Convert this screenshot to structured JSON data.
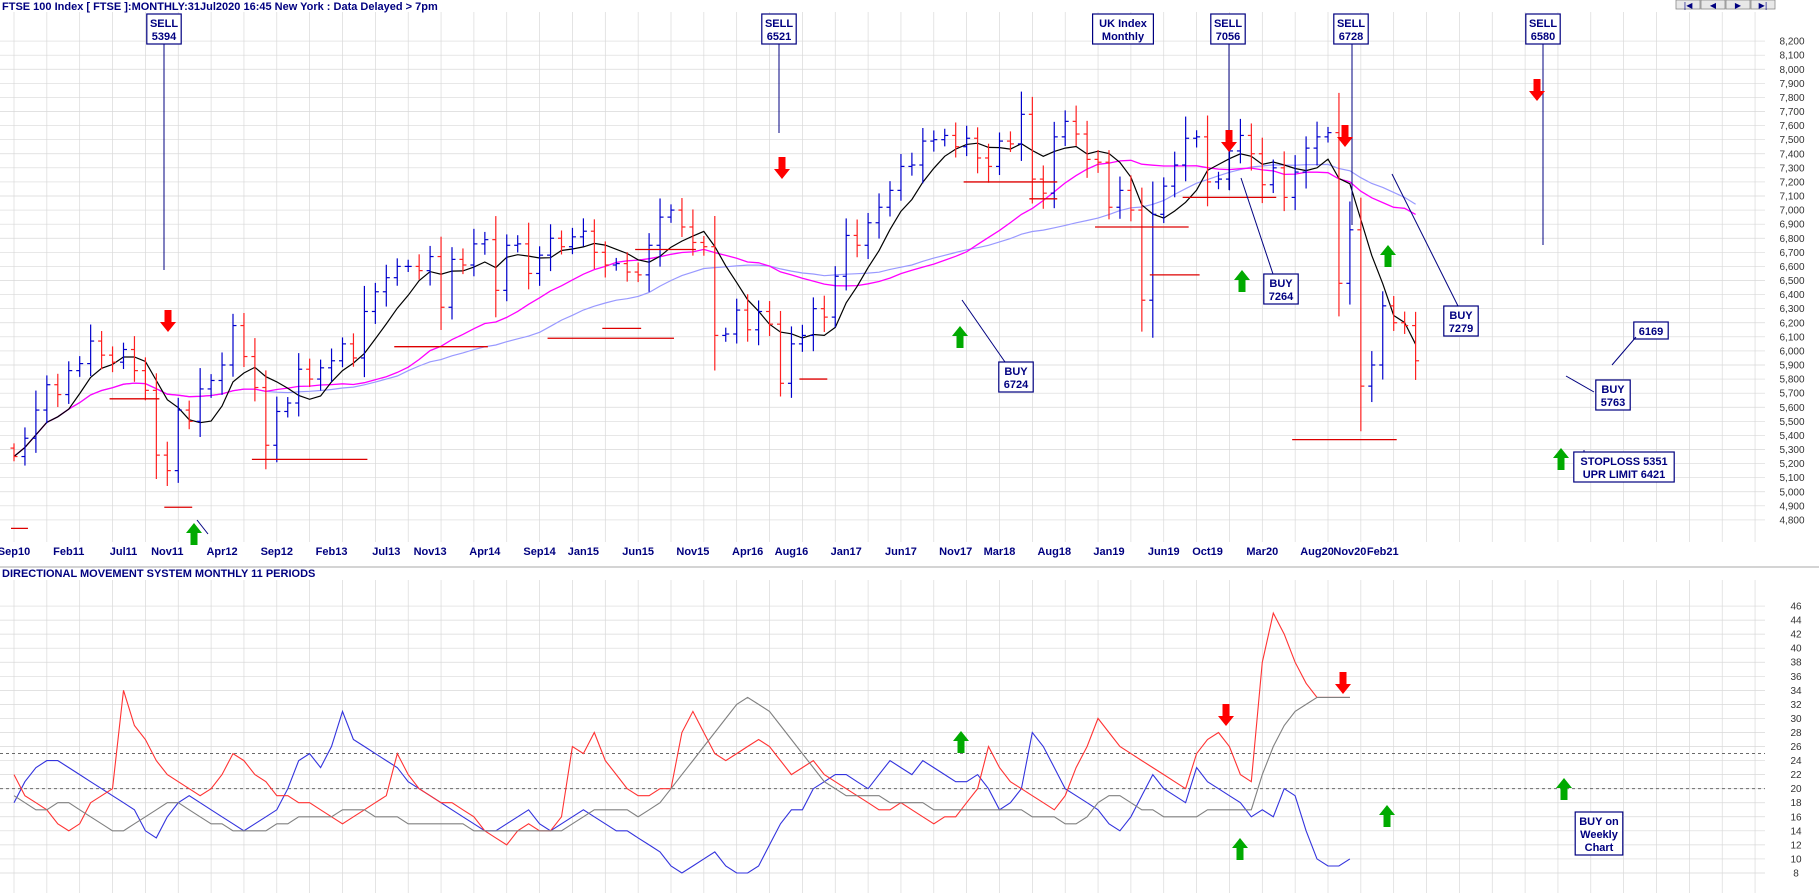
{
  "header": {
    "title": "FTSE 100 Index [ FTSE ]:MONTHLY:31Jul2020 16:45 New York : Data Delayed > 7pm",
    "indicator_title": "DIRECTIONAL MOVEMENT SYSTEM MONTHLY 11 PERIODS"
  },
  "nav_buttons": [
    "|◀",
    "◀",
    "▶",
    "▶|"
  ],
  "colors": {
    "up_bar": "#0000cc",
    "down_bar": "#ff2020",
    "ma_short": "#000000",
    "ma_mid": "#ff00ff",
    "ma_long": "#9999ff",
    "dmi_plus": "#3333dd",
    "dmi_minus": "#ff3333",
    "adx": "#808080",
    "grid": "#d9d9d9",
    "arrow_buy": "#00aa00",
    "arrow_sell": "#ff0000",
    "label_border": "#000080"
  },
  "chart_data": [
    {
      "type": "ohlc",
      "name": "price",
      "ylim": [
        4700,
        8300
      ],
      "y_ticks": [
        4800,
        4900,
        5000,
        5100,
        5200,
        5300,
        5400,
        5500,
        5600,
        5700,
        5800,
        5900,
        6000,
        6100,
        6200,
        6300,
        6400,
        6500,
        6600,
        6700,
        6800,
        6900,
        7000,
        7100,
        7200,
        7300,
        7400,
        7500,
        7600,
        7700,
        7800,
        7900,
        8000,
        8100,
        8200
      ],
      "x_labels": [
        "Sep10",
        "Feb11",
        "Jul11",
        "Nov11",
        "Apr12",
        "Sep12",
        "Feb13",
        "Jul13",
        "Nov13",
        "Apr14",
        "Sep14",
        "Jan15",
        "Jun15",
        "Nov15",
        "Apr16",
        "Aug16",
        "Jan17",
        "Jun17",
        "Nov17",
        "Mar18",
        "Aug18",
        "Jan19",
        "Jun19",
        "Oct19",
        "Mar20",
        "Aug20",
        "Nov20",
        "Feb21"
      ],
      "x_label_months": [
        0,
        5,
        10,
        14,
        19,
        24,
        29,
        34,
        38,
        43,
        48,
        52,
        57,
        62,
        67,
        71,
        76,
        81,
        86,
        90,
        95,
        100,
        105,
        109,
        114,
        119,
        122,
        125
      ],
      "closes": [
        5250,
        5380,
        5580,
        5760,
        5690,
        5860,
        5910,
        6070,
        5970,
        5920,
        6010,
        5860,
        5720,
        5260,
        5150,
        5580,
        5500,
        5730,
        5790,
        5900,
        6180,
        5960,
        5740,
        5330,
        5570,
        5630,
        5870,
        5800,
        5880,
        5930,
        6050,
        5950,
        6280,
        6420,
        6520,
        6600,
        6600,
        6570,
        6670,
        6310,
        6650,
        6610,
        6760,
        6790,
        6430,
        6750,
        6760,
        6550,
        6680,
        6800,
        6740,
        6810,
        6850,
        6700,
        6610,
        6620,
        6560,
        6540,
        6750,
        6950,
        7000,
        6880,
        6770,
        6740,
        6110,
        6120,
        6290,
        6150,
        6280,
        6190,
        5770,
        6050,
        6110,
        6300,
        6240,
        6530,
        6820,
        6750,
        6910,
        7020,
        7140,
        7310,
        7320,
        7490,
        7500,
        7530,
        7450,
        7510,
        7370,
        7310,
        7490,
        7470,
        7680,
        7220,
        7120,
        7520,
        7630,
        7540,
        7360,
        7340,
        7020,
        7140,
        7000,
        6360,
        6970,
        7170,
        7320,
        7510,
        7520,
        7200,
        7220,
        7420,
        7530,
        7400,
        7180,
        7300,
        7090,
        7270,
        7440,
        7520,
        7550,
        6480,
        6860,
        5750,
        5900,
        6320,
        6200,
        6180,
        5930
      ],
      "annotations": {
        "signals": [
          {
            "label": [
              "SELL",
              "5394"
            ]
          },
          {
            "label": [
              "SELL",
              "6521"
            ]
          },
          {
            "label": [
              "UK Index",
              "Monthly"
            ]
          },
          {
            "label": [
              "SELL",
              "7056"
            ]
          },
          {
            "label": [
              "SELL",
              "6728"
            ]
          },
          {
            "label": [
              "SELL",
              "6580"
            ]
          },
          {
            "label": [
              "BUY",
              "7264"
            ]
          },
          {
            "label": [
              "BUY",
              "6724"
            ]
          },
          {
            "label": [
              "BUY",
              "7279"
            ]
          },
          {
            "label": [
              "6169"
            ]
          },
          {
            "label": [
              "BUY",
              "5763"
            ]
          },
          {
            "label": [
              "STOPLOSS 5351",
              "UPR LIMIT 6421"
            ]
          }
        ]
      }
    },
    {
      "type": "line",
      "name": "directional movement",
      "ylim": [
        7,
        48
      ],
      "y_ticks": [
        8,
        10,
        12,
        14,
        16,
        18,
        20,
        22,
        24,
        26,
        28,
        30,
        32,
        34,
        36,
        38,
        40,
        42,
        44,
        46
      ],
      "ref_lines": [
        20,
        25
      ],
      "series": [
        {
          "values": [
            18,
            21,
            23,
            24,
            24,
            23,
            22,
            21,
            20,
            19,
            18,
            17,
            14,
            13,
            16,
            18,
            19,
            18,
            17,
            16,
            15,
            14,
            15,
            16,
            17,
            20,
            24,
            25,
            23,
            26,
            31,
            27,
            26,
            25,
            24,
            23,
            21,
            20,
            19,
            18,
            17,
            16,
            15,
            14,
            14,
            15,
            16,
            17,
            15,
            14,
            15,
            16,
            17,
            16,
            15,
            14,
            14,
            13,
            12,
            11,
            9,
            8,
            9,
            10,
            11,
            9,
            8,
            8,
            9,
            12,
            15,
            17,
            17,
            20,
            21,
            22,
            22,
            21,
            20,
            22,
            24,
            23,
            22,
            24,
            23,
            22,
            21,
            21,
            22,
            20,
            17,
            18,
            20,
            28,
            26,
            23,
            20,
            19,
            18,
            17,
            15,
            14,
            16,
            19,
            22,
            20,
            19,
            18,
            23,
            21,
            20,
            19,
            18,
            16,
            17,
            16,
            20,
            19,
            14,
            10,
            9,
            9,
            10
          ]
        },
        {
          "values": [
            22,
            19,
            18,
            17,
            15,
            14,
            15,
            18,
            19,
            20,
            34,
            29,
            27,
            24,
            22,
            21,
            20,
            19,
            20,
            22,
            25,
            24,
            22,
            21,
            19,
            19,
            18,
            18,
            17,
            16,
            15,
            16,
            17,
            18,
            19,
            25,
            22,
            20,
            19,
            18,
            18,
            17,
            16,
            14,
            13,
            12,
            14,
            15,
            14,
            14,
            16,
            26,
            25,
            28,
            24,
            22,
            20,
            19,
            19,
            20,
            20,
            28,
            31,
            28,
            25,
            24,
            25,
            26,
            27,
            26,
            24,
            22,
            23,
            24,
            22,
            21,
            20,
            19,
            18,
            17,
            17,
            18,
            17,
            16,
            15,
            16,
            16,
            18,
            20,
            26,
            23,
            21,
            20,
            19,
            18,
            17,
            19,
            23,
            26,
            30,
            28,
            26,
            25,
            24,
            23,
            22,
            21,
            20,
            25,
            27,
            28,
            26,
            22,
            21,
            38,
            45,
            42,
            38,
            35,
            33,
            33,
            33,
            33
          ]
        },
        {
          "values": [
            19,
            18,
            17,
            17,
            18,
            18,
            17,
            16,
            15,
            14,
            14,
            15,
            16,
            17,
            18,
            18,
            17,
            16,
            15,
            15,
            14,
            14,
            14,
            14,
            15,
            15,
            16,
            16,
            16,
            16,
            17,
            17,
            17,
            16,
            16,
            16,
            15,
            15,
            15,
            15,
            15,
            15,
            14,
            14,
            14,
            14,
            14,
            14,
            14,
            14,
            14,
            15,
            16,
            17,
            17,
            17,
            17,
            16,
            17,
            18,
            20,
            22,
            24,
            26,
            28,
            30,
            32,
            33,
            32,
            31,
            29,
            27,
            25,
            23,
            21,
            20,
            19,
            19,
            19,
            19,
            18,
            18,
            18,
            18,
            17,
            17,
            17,
            17,
            17,
            17,
            17,
            17,
            17,
            16,
            16,
            16,
            15,
            15,
            16,
            18,
            19,
            19,
            18,
            17,
            17,
            16,
            16,
            16,
            16,
            17,
            17,
            17,
            17,
            17,
            22,
            26,
            29,
            31,
            32,
            33,
            33,
            33,
            33
          ]
        }
      ]
    }
  ],
  "labels": {
    "sell_5394": [
      "SELL",
      "5394"
    ],
    "sell_6521": [
      "SELL",
      "6521"
    ],
    "uk_index": [
      "UK Index",
      "Monthly"
    ],
    "sell_7056": [
      "SELL",
      "7056"
    ],
    "sell_6728": [
      "SELL",
      "6728"
    ],
    "sell_6580": [
      "SELL",
      "6580"
    ],
    "buy_7264": [
      "BUY",
      "7264"
    ],
    "buy_6724": [
      "BUY",
      "6724"
    ],
    "buy_7279": [
      "BUY",
      "7279"
    ],
    "box_6169": [
      "6169"
    ],
    "buy_5763": [
      "BUY",
      "5763"
    ],
    "stoploss": [
      "STOPLOSS 5351",
      "UPR LIMIT 6421"
    ],
    "buy_weekly": [
      "BUY on",
      "Weekly",
      "Chart"
    ]
  }
}
